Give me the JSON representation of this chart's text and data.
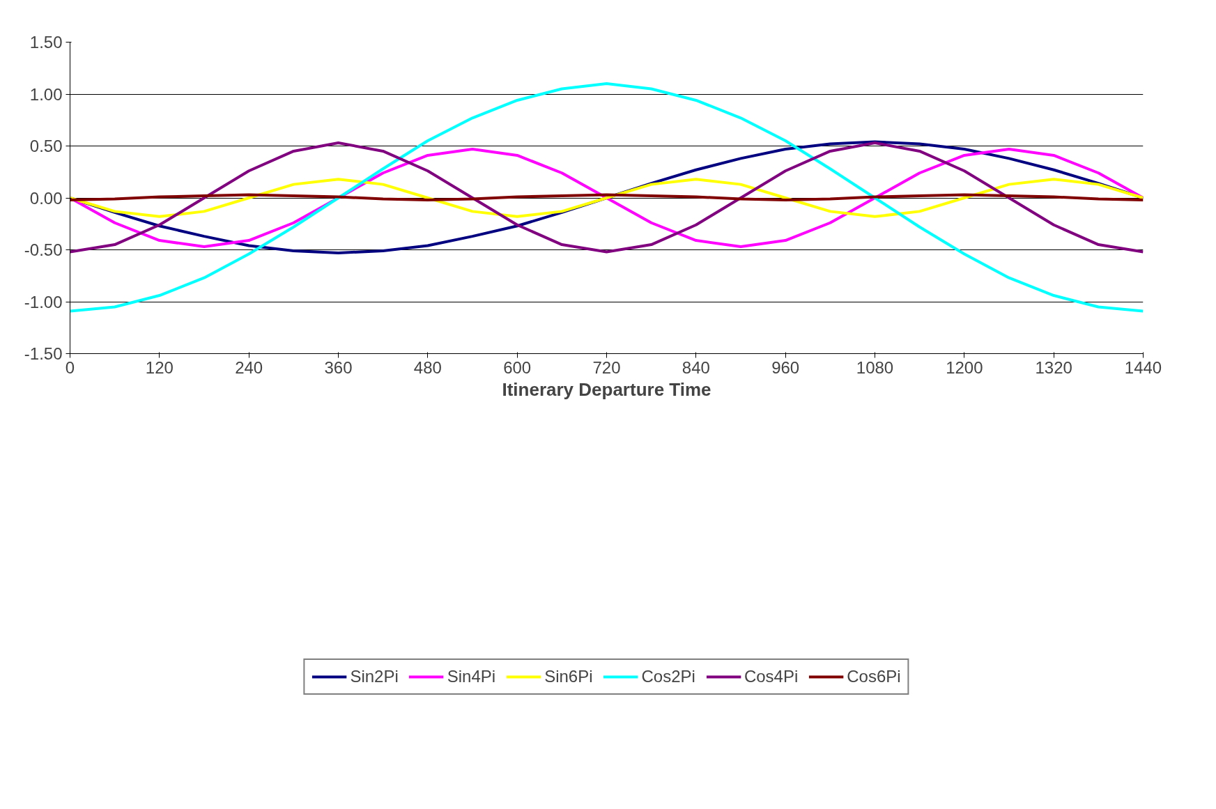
{
  "chart_data": {
    "type": "line",
    "xlabel": "Itinerary Departure Time",
    "x": [
      0,
      60,
      120,
      180,
      240,
      300,
      360,
      420,
      480,
      540,
      600,
      660,
      720,
      780,
      840,
      900,
      960,
      1020,
      1080,
      1140,
      1200,
      1260,
      1320,
      1380,
      1440
    ],
    "series": [
      {
        "name": "Sin2Pi",
        "color": "#000080",
        "values": [
          0,
          -0.14,
          -0.27,
          -0.37,
          -0.46,
          -0.51,
          -0.53,
          -0.51,
          -0.46,
          -0.37,
          -0.27,
          -0.14,
          0,
          0.14,
          0.27,
          0.38,
          0.47,
          0.52,
          0.54,
          0.52,
          0.47,
          0.38,
          0.27,
          0.14,
          0
        ]
      },
      {
        "name": "Sin4Pi",
        "color": "#ff00ff",
        "values": [
          0,
          -0.24,
          -0.41,
          -0.47,
          -0.41,
          -0.24,
          0,
          0.24,
          0.41,
          0.47,
          0.41,
          0.24,
          0,
          -0.24,
          -0.41,
          -0.47,
          -0.41,
          -0.24,
          0,
          0.24,
          0.41,
          0.47,
          0.41,
          0.24,
          0
        ]
      },
      {
        "name": "Sin6Pi",
        "color": "#ffff00",
        "values": [
          0,
          -0.13,
          -0.18,
          -0.13,
          0,
          0.13,
          0.18,
          0.13,
          0,
          -0.13,
          -0.18,
          -0.13,
          0,
          0.13,
          0.18,
          0.13,
          0,
          -0.13,
          -0.18,
          -0.13,
          0,
          0.13,
          0.18,
          0.13,
          0
        ]
      },
      {
        "name": "Cos2Pi",
        "color": "#00ffff",
        "values": [
          -1.09,
          -1.05,
          -0.94,
          -0.77,
          -0.54,
          -0.28,
          0,
          0.28,
          0.55,
          0.77,
          0.94,
          1.05,
          1.1,
          1.05,
          0.94,
          0.77,
          0.55,
          0.28,
          0,
          -0.28,
          -0.54,
          -0.77,
          -0.94,
          -1.05,
          -1.09
        ]
      },
      {
        "name": "Cos4Pi",
        "color": "#800080",
        "values": [
          -0.52,
          -0.45,
          -0.26,
          0,
          0.26,
          0.45,
          0.53,
          0.45,
          0.26,
          0,
          -0.26,
          -0.45,
          -0.52,
          -0.45,
          -0.26,
          0,
          0.26,
          0.45,
          0.53,
          0.45,
          0.26,
          0,
          -0.26,
          -0.45,
          -0.52
        ]
      },
      {
        "name": "Cos6Pi",
        "color": "#800000",
        "values": [
          -0.02,
          -0.01,
          0.01,
          0.02,
          0.03,
          0.02,
          0.01,
          -0.01,
          -0.02,
          -0.01,
          0.01,
          0.02,
          0.03,
          0.02,
          0.01,
          -0.01,
          -0.02,
          -0.01,
          0.01,
          0.02,
          0.03,
          0.02,
          0.01,
          -0.01,
          -0.02
        ]
      }
    ],
    "xlim": [
      0,
      1440
    ],
    "xticks": [
      0,
      120,
      240,
      360,
      480,
      600,
      720,
      840,
      960,
      1080,
      1200,
      1320,
      1440
    ],
    "ylim": [
      -1.5,
      1.5
    ],
    "yticks": [
      {
        "value": -1.5,
        "label": "-1.50"
      },
      {
        "value": -1.0,
        "label": "-1.00"
      },
      {
        "value": -0.5,
        "label": "-0.50"
      },
      {
        "value": 0,
        "label": "0.00"
      },
      {
        "value": 0.5,
        "label": "0.50"
      },
      {
        "value": 1.0,
        "label": "1.00"
      },
      {
        "value": 1.5,
        "label": "1.50"
      }
    ],
    "grid": "y",
    "legend": "bottom",
    "marker": "none",
    "line_style": "solid"
  }
}
